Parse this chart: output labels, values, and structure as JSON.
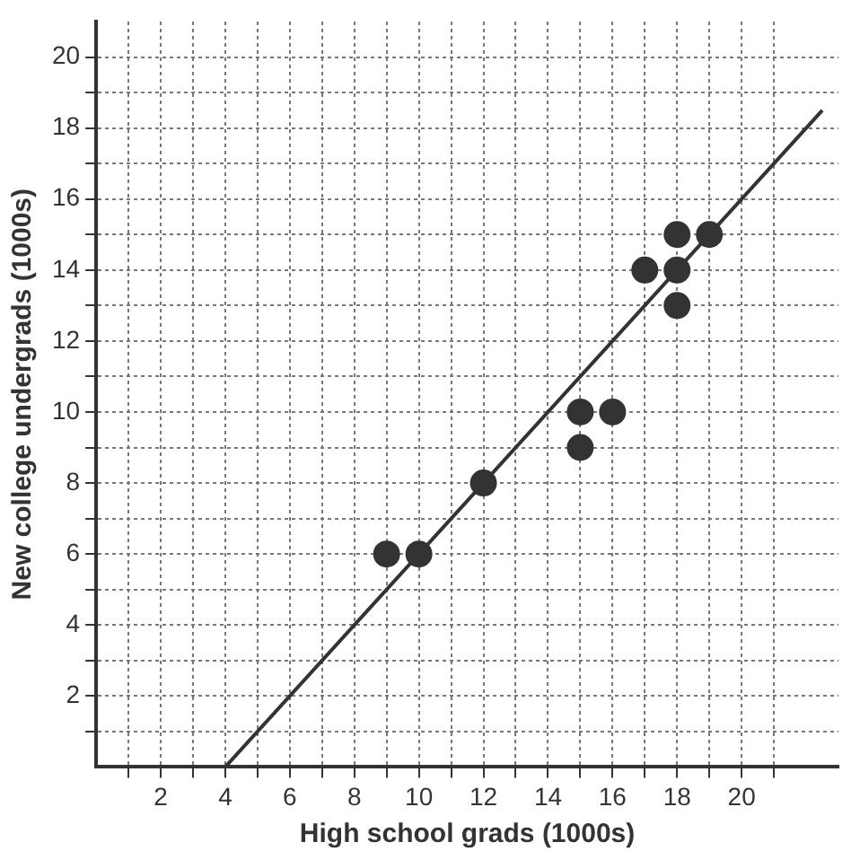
{
  "chart_data": {
    "type": "scatter",
    "xlabel": "High school grads (1000s)",
    "ylabel": "New college undergrads (1000s)",
    "xlim": [
      0,
      23
    ],
    "ylim": [
      0,
      21
    ],
    "xticks": [
      {
        "value": 1,
        "label": null
      },
      2,
      {
        "value": 3,
        "label": null
      },
      4,
      {
        "value": 5,
        "label": null
      },
      6,
      {
        "value": 7,
        "label": null
      },
      8,
      {
        "value": 9,
        "label": null
      },
      10,
      {
        "value": 11,
        "label": null
      },
      12,
      {
        "value": 13,
        "label": null
      },
      14,
      {
        "value": 15,
        "label": null
      },
      16,
      {
        "value": 17,
        "label": null
      },
      18,
      {
        "value": 19,
        "label": null
      },
      20,
      {
        "value": 21,
        "label": null
      }
    ],
    "yticks": [
      {
        "value": 1,
        "label": null
      },
      2,
      {
        "value": 3,
        "label": null
      },
      4,
      {
        "value": 5,
        "label": null
      },
      6,
      {
        "value": 7,
        "label": null
      },
      8,
      {
        "value": 9,
        "label": null
      },
      10,
      {
        "value": 11,
        "label": null
      },
      12,
      {
        "value": 13,
        "label": null
      },
      14,
      {
        "value": 15,
        "label": null
      },
      16,
      {
        "value": 17,
        "label": null
      },
      18,
      {
        "value": 19,
        "label": null
      },
      20
    ],
    "grid": true,
    "marker": "circle",
    "legend": false,
    "series": [
      {
        "color": "#333333",
        "x": [
          9,
          10,
          12,
          15,
          15,
          16,
          17,
          18,
          18,
          18,
          19
        ],
        "values": [
          6,
          6,
          8,
          9,
          10,
          10,
          14,
          14,
          15,
          13,
          15
        ]
      },
      {
        "type": "line",
        "color": "#333333",
        "marker": "none",
        "x": [
          4,
          22.5
        ],
        "values": [
          0,
          18.5
        ]
      }
    ]
  }
}
